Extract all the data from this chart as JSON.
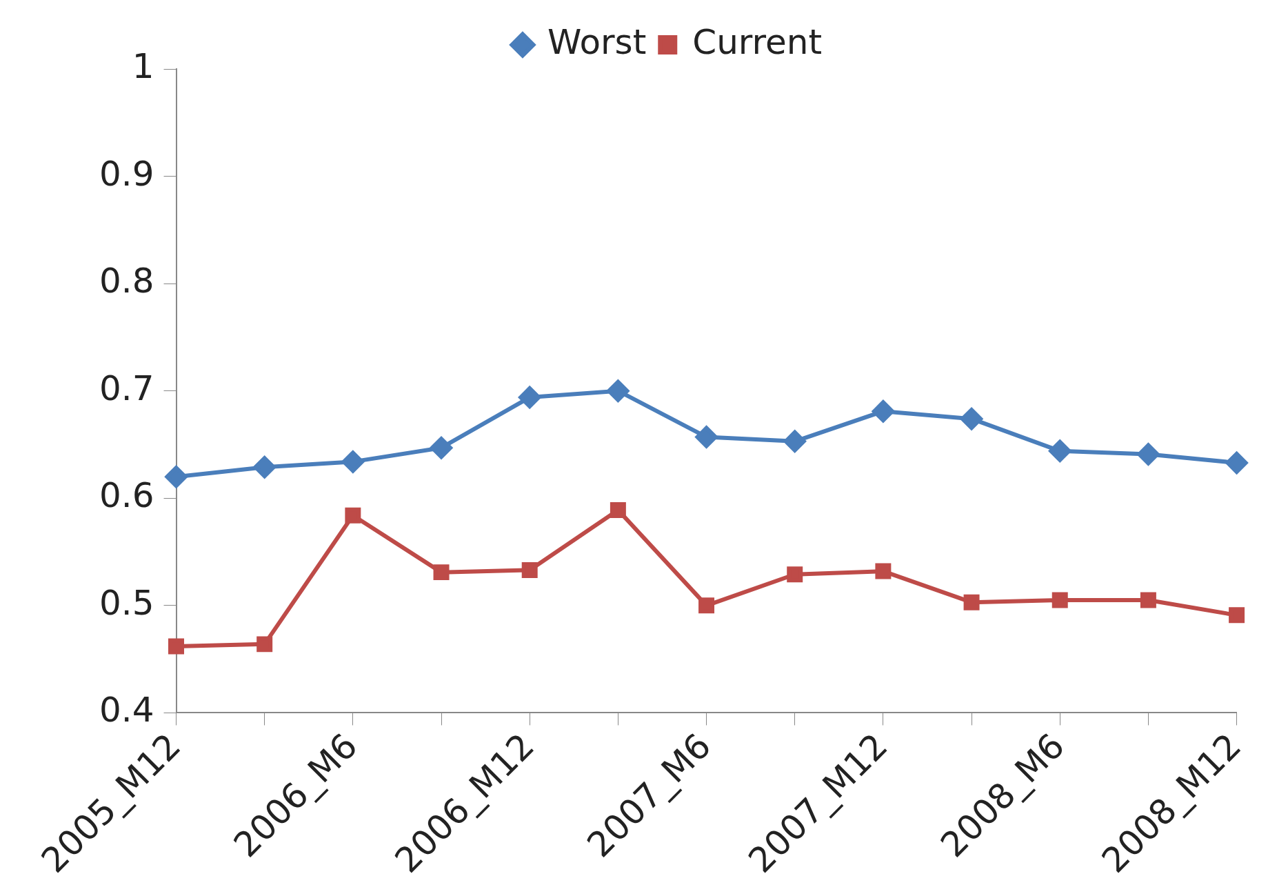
{
  "chart_data": {
    "type": "line",
    "categories": [
      "2005_M12",
      null,
      "2006_M6",
      null,
      "2006_M12",
      null,
      "2007_M6",
      null,
      "2007_M12",
      null,
      "2008_M6",
      null,
      "2008_M12"
    ],
    "series": [
      {
        "name": "Worst",
        "color": "#4a7ebb",
        "marker": "diamond",
        "values": [
          0.62,
          0.629,
          0.634,
          0.647,
          0.694,
          0.7,
          0.657,
          0.653,
          0.681,
          0.674,
          0.644,
          0.641,
          0.633
        ]
      },
      {
        "name": "Current",
        "color": "#be4b48",
        "marker": "square",
        "values": [
          0.462,
          0.464,
          0.584,
          0.531,
          0.533,
          0.589,
          0.5,
          0.529,
          0.532,
          0.503,
          0.505,
          0.505,
          0.491
        ]
      }
    ],
    "ylim": [
      0.4,
      1
    ],
    "yticks": [
      0.4,
      0.5,
      0.6,
      0.7,
      0.8,
      0.9,
      1
    ],
    "grid": false,
    "legend": "top",
    "line_style": "solid"
  }
}
